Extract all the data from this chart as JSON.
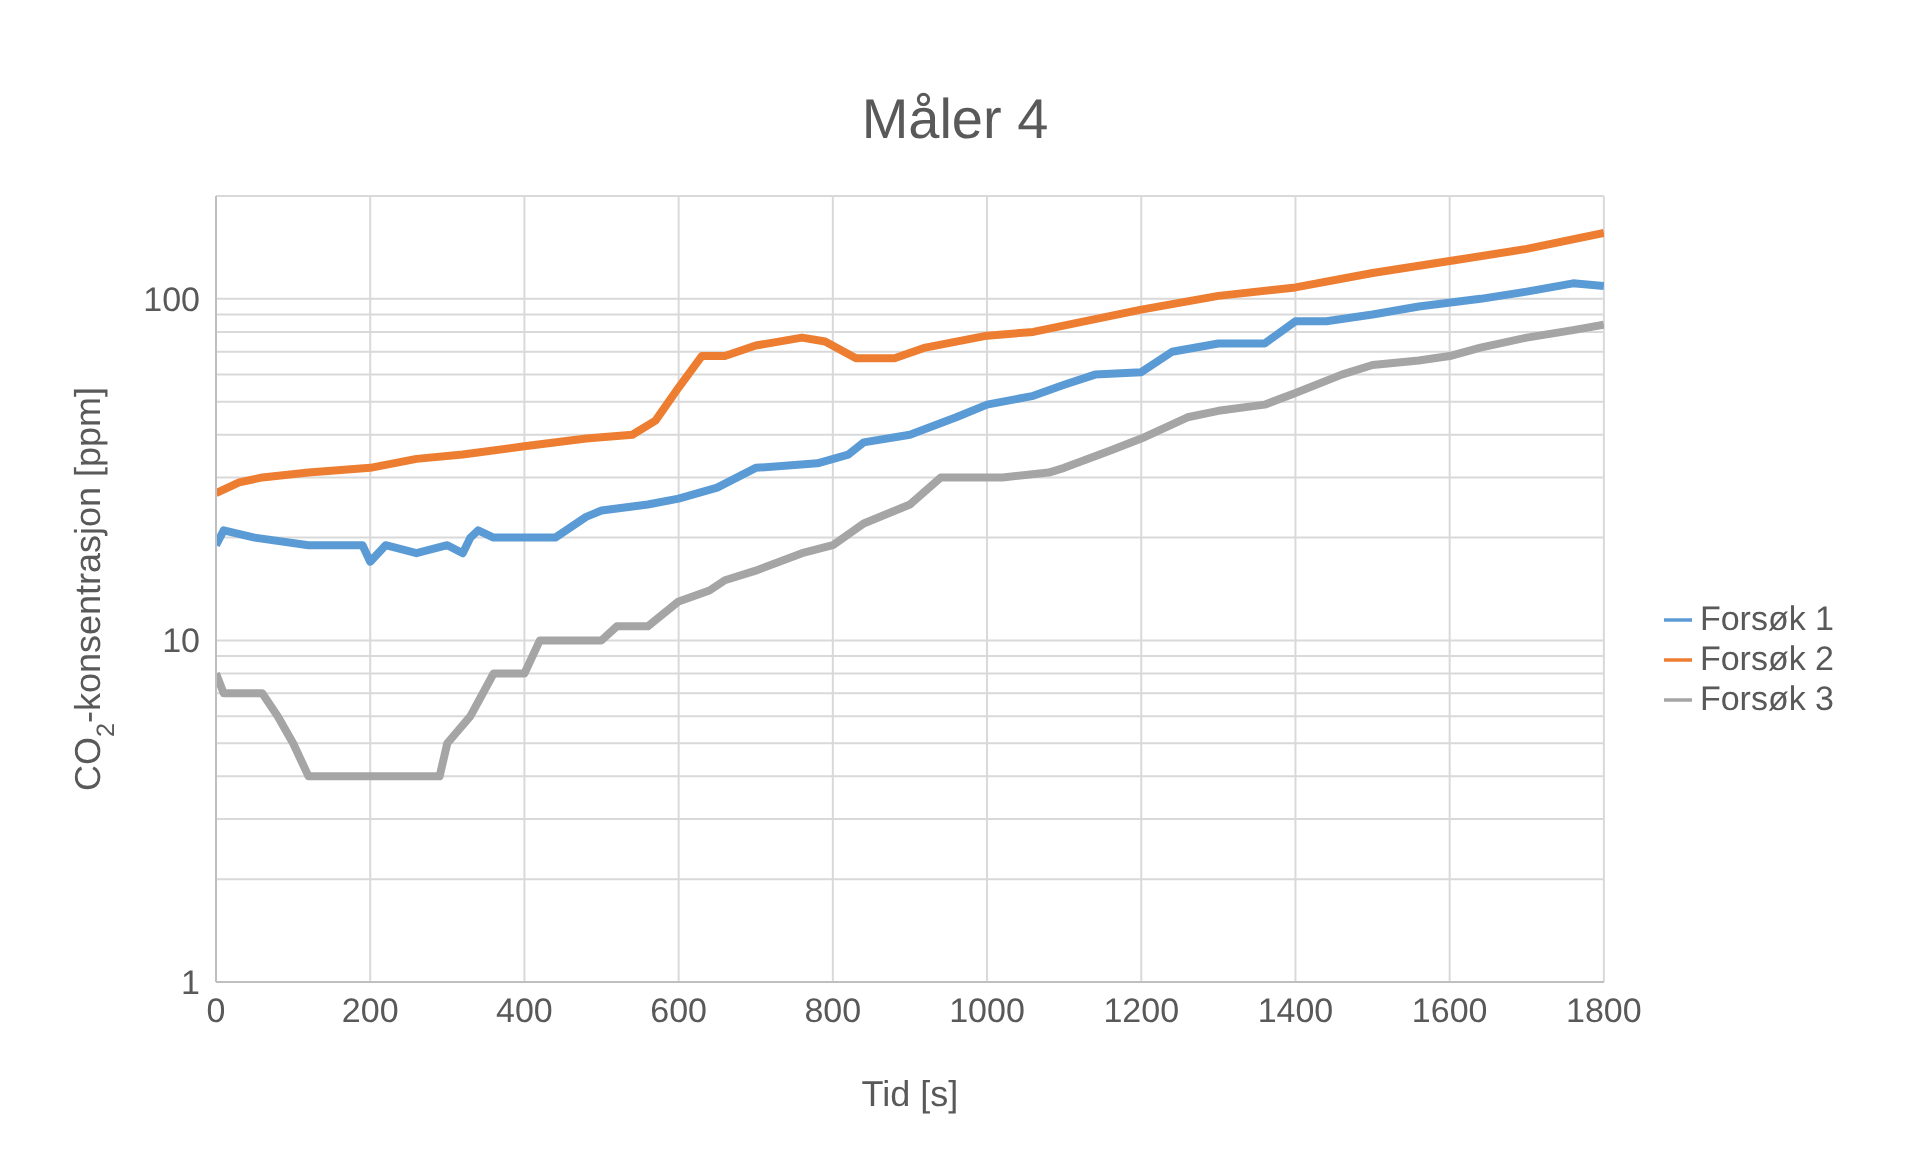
{
  "chart_data": {
    "type": "line",
    "title": "Måler 4",
    "xlabel": "Tid [s]",
    "ylabel": "CO$_{2}$-konsentrasjon [ppm]",
    "log": "y",
    "grid": true,
    "legend": "right",
    "marker": "none",
    "line_style": "solid",
    "xlim": [
      0,
      1800
    ],
    "xticks": [
      0,
      200,
      400,
      600,
      800,
      1000,
      1200,
      1400,
      1600,
      1800
    ],
    "ylim": [
      1,
      200
    ],
    "yticks": [
      1,
      {
        "value": 2,
        "label": null
      },
      {
        "value": 3,
        "label": null
      },
      {
        "value": 4,
        "label": null
      },
      {
        "value": 5,
        "label": null
      },
      {
        "value": 6,
        "label": null
      },
      {
        "value": 7,
        "label": null
      },
      {
        "value": 8,
        "label": null
      },
      {
        "value": 9,
        "label": null
      },
      10,
      {
        "value": 20,
        "label": null
      },
      {
        "value": 30,
        "label": null
      },
      {
        "value": 40,
        "label": null
      },
      {
        "value": 50,
        "label": null
      },
      {
        "value": 60,
        "label": null
      },
      {
        "value": 70,
        "label": null
      },
      {
        "value": 80,
        "label": null
      },
      {
        "value": 90,
        "label": null
      },
      100,
      {
        "value": 200,
        "label": null
      }
    ],
    "series": [
      {
        "name": "Forsøk 1",
        "color": "#5b9bd5",
        "x": [
          0,
          10,
          50,
          120,
          190,
          200,
          220,
          260,
          300,
          320,
          330,
          340,
          360,
          440,
          480,
          500,
          560,
          600,
          650,
          700,
          780,
          820,
          840,
          900,
          960,
          1000,
          1060,
          1100,
          1140,
          1200,
          1240,
          1300,
          1360,
          1400,
          1440,
          1500,
          1560,
          1640,
          1700,
          1760,
          1800
        ],
        "values": [
          19,
          21,
          20,
          19,
          19,
          17,
          19,
          18,
          19,
          18,
          20,
          21,
          20,
          20,
          23,
          24,
          25,
          26,
          28,
          32,
          33,
          35,
          38,
          40,
          45,
          49,
          52,
          56,
          60,
          61,
          70,
          74,
          74,
          86,
          86,
          90,
          95,
          100,
          105,
          111,
          109
        ]
      },
      {
        "name": "Forsøk 2",
        "color": "#ed7d31",
        "x": [
          0,
          30,
          60,
          120,
          200,
          260,
          320,
          400,
          480,
          540,
          570,
          600,
          630,
          660,
          700,
          760,
          790,
          830,
          880,
          920,
          1000,
          1060,
          1200,
          1300,
          1400,
          1500,
          1600,
          1700,
          1800
        ],
        "values": [
          27,
          29,
          30,
          31,
          32,
          34,
          35,
          37,
          39,
          40,
          44,
          55,
          68,
          68,
          73,
          77,
          75,
          67,
          67,
          72,
          78,
          80,
          93,
          102,
          108,
          119,
          129,
          140,
          156
        ]
      },
      {
        "name": "Forsøk 3",
        "color": "#a5a5a5",
        "x": [
          0,
          10,
          60,
          80,
          100,
          120,
          290,
          300,
          330,
          360,
          400,
          420,
          500,
          520,
          560,
          600,
          640,
          660,
          700,
          760,
          800,
          840,
          900,
          940,
          1020,
          1080,
          1100,
          1160,
          1200,
          1260,
          1300,
          1360,
          1400,
          1460,
          1500,
          1560,
          1600,
          1640,
          1700,
          1760,
          1800
        ],
        "values": [
          8,
          7,
          7,
          6,
          5,
          4,
          4,
          5,
          6,
          8,
          8,
          10,
          10,
          11,
          11,
          13,
          14,
          15,
          16,
          18,
          19,
          22,
          25,
          30,
          30,
          31,
          32,
          36,
          39,
          45,
          47,
          49,
          53,
          60,
          64,
          66,
          68,
          72,
          77,
          81,
          84
        ]
      }
    ]
  }
}
